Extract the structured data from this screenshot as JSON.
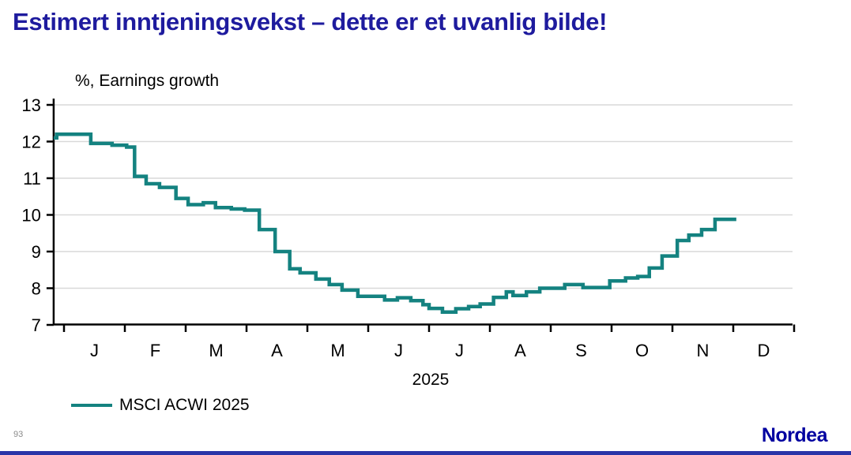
{
  "title": {
    "text": "Estimert inntjeningsvekst – dette er et uvanlig bilde!"
  },
  "footer": {
    "page_number": "93",
    "logo_text": "Nordea"
  },
  "colors": {
    "title": "#1e1b9e",
    "series_teal": "#148280",
    "gridline": "#d9d9d9",
    "axis": "#000000",
    "logo_blue": "#0000A0",
    "bottom_bar": "#2a35a8",
    "page_number_gray": "#8a8a8a"
  },
  "chart_data": {
    "type": "line",
    "line_style": "step-after",
    "axis_title": "%, Earnings growth",
    "year_label": "2025",
    "x_tick_labels": [
      "J",
      "F",
      "M",
      "A",
      "M",
      "J",
      "J",
      "A",
      "S",
      "O",
      "N",
      "D"
    ],
    "y_ticks": [
      7,
      8,
      9,
      10,
      11,
      12,
      13
    ],
    "ylim": [
      7,
      13
    ],
    "xlim_months": [
      -0.17,
      12
    ],
    "grid": "horizontal",
    "legend": {
      "position": "bottom-left",
      "entries": [
        {
          "label": "MSCI ACWI 2025",
          "color": "#148280"
        }
      ]
    },
    "series": [
      {
        "name": "MSCI ACWI 2025",
        "color": "#148280",
        "points_month_value": [
          [
            -0.17,
            12.1
          ],
          [
            -0.12,
            12.2
          ],
          [
            0.44,
            11.95
          ],
          [
            0.79,
            11.9
          ],
          [
            1.03,
            11.85
          ],
          [
            1.16,
            11.05
          ],
          [
            1.35,
            10.85
          ],
          [
            1.57,
            10.75
          ],
          [
            1.84,
            10.45
          ],
          [
            2.04,
            10.28
          ],
          [
            2.29,
            10.33
          ],
          [
            2.49,
            10.2
          ],
          [
            2.75,
            10.16
          ],
          [
            2.97,
            10.13
          ],
          [
            3.21,
            9.6
          ],
          [
            3.47,
            9.0
          ],
          [
            3.71,
            8.53
          ],
          [
            3.88,
            8.42
          ],
          [
            4.14,
            8.25
          ],
          [
            4.36,
            8.1
          ],
          [
            4.57,
            7.95
          ],
          [
            4.83,
            7.78
          ],
          [
            5.27,
            7.68
          ],
          [
            5.48,
            7.74
          ],
          [
            5.7,
            7.66
          ],
          [
            5.9,
            7.55
          ],
          [
            6.0,
            7.45
          ],
          [
            6.22,
            7.35
          ],
          [
            6.44,
            7.44
          ],
          [
            6.65,
            7.5
          ],
          [
            6.84,
            7.57
          ],
          [
            7.06,
            7.75
          ],
          [
            7.27,
            7.9
          ],
          [
            7.38,
            7.8
          ],
          [
            7.6,
            7.9
          ],
          [
            7.82,
            8.0
          ],
          [
            8.23,
            8.1
          ],
          [
            8.53,
            8.02
          ],
          [
            8.97,
            8.2
          ],
          [
            9.23,
            8.28
          ],
          [
            9.43,
            8.32
          ],
          [
            9.62,
            8.55
          ],
          [
            9.83,
            8.88
          ],
          [
            10.08,
            9.3
          ],
          [
            10.27,
            9.45
          ],
          [
            10.48,
            9.6
          ],
          [
            10.7,
            9.88
          ],
          [
            11.05,
            9.88
          ]
        ]
      }
    ]
  }
}
